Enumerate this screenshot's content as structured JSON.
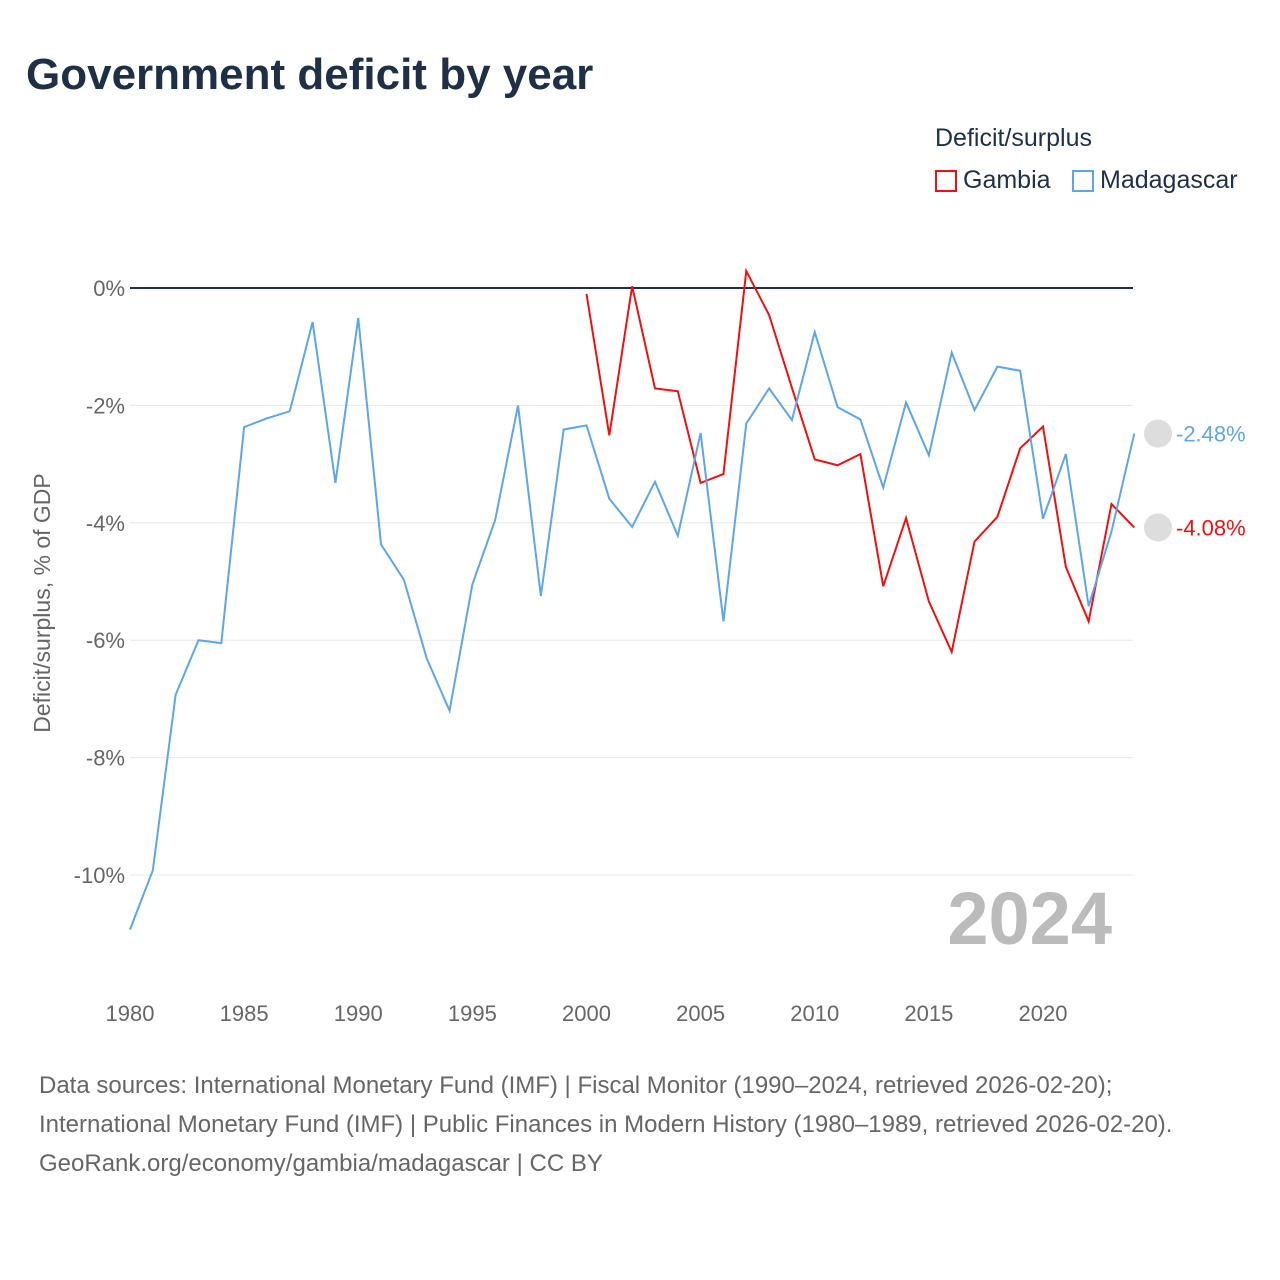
{
  "chart_data": {
    "type": "line",
    "title": "Government deficit by year",
    "ylabel": "Deficit/surplus, % of GDP",
    "xlabel": "",
    "ylim": [
      -11,
      0.3
    ],
    "xlim": [
      1980,
      2024
    ],
    "yticks": [
      0,
      -2,
      -4,
      -6,
      -8,
      -10
    ],
    "ytick_labels": [
      "0%",
      "-2%",
      "-4%",
      "-6%",
      "-8%",
      "-10%"
    ],
    "xticks": [
      1980,
      1985,
      1990,
      1995,
      2000,
      2005,
      2010,
      2015,
      2020
    ],
    "xtick_labels": [
      "1980",
      "1985",
      "1990",
      "1995",
      "2000",
      "2005",
      "2010",
      "2015",
      "2020"
    ],
    "legend_title": "Deficit/surplus",
    "legend_position": "top-right",
    "year_watermark": "2024",
    "series": [
      {
        "name": "Gambia",
        "color": "#ee1111",
        "end_label": "-4.08%",
        "x": [
          2000,
          2001,
          2002,
          2003,
          2004,
          2005,
          2006,
          2007,
          2008,
          2009,
          2010,
          2011,
          2012,
          2013,
          2014,
          2015,
          2016,
          2017,
          2018,
          2019,
          2020,
          2021,
          2022,
          2023,
          2024
        ],
        "values": [
          -0.1,
          -2.51,
          0.03,
          -1.71,
          -1.76,
          -3.32,
          -3.17,
          0.29,
          -0.46,
          -1.7,
          -2.92,
          -3.02,
          -2.83,
          -5.08,
          -3.92,
          -5.34,
          -6.2,
          -4.32,
          -3.9,
          -2.73,
          -2.36,
          -4.75,
          -5.68,
          -3.68,
          -4.08
        ]
      },
      {
        "name": "Madagascar",
        "color": "#5ea6e8",
        "end_label": "-2.48%",
        "x": [
          1980,
          1981,
          1982,
          1983,
          1984,
          1985,
          1986,
          1987,
          1988,
          1989,
          1990,
          1991,
          1992,
          1993,
          1994,
          1995,
          1996,
          1997,
          1998,
          1999,
          2000,
          2001,
          2002,
          2003,
          2004,
          2005,
          2006,
          2007,
          2008,
          2009,
          2010,
          2011,
          2012,
          2013,
          2014,
          2015,
          2016,
          2017,
          2018,
          2019,
          2020,
          2021,
          2022,
          2023,
          2024
        ],
        "values": [
          -10.93,
          -9.92,
          -6.93,
          -6.0,
          -6.05,
          -2.37,
          -2.22,
          -2.1,
          -0.58,
          -3.32,
          -0.51,
          -4.37,
          -4.97,
          -6.31,
          -7.2,
          -5.05,
          -3.95,
          -2.0,
          -5.25,
          -2.41,
          -2.34,
          -3.59,
          -4.07,
          -3.3,
          -4.22,
          -2.47,
          -5.68,
          -2.31,
          -1.71,
          -2.25,
          -0.75,
          -2.03,
          -2.24,
          -3.4,
          -1.95,
          -2.85,
          -1.1,
          -2.08,
          -1.34,
          -1.41,
          -3.93,
          -2.83,
          -5.42,
          -4.15,
          -2.48
        ]
      }
    ]
  },
  "footer": {
    "sources": "Data sources: International Monetary Fund (IMF) | Fiscal Monitor (1990–2024, retrieved 2026-02-20); International Monetary Fund (IMF) | Public Finances in Modern History (1980–1989, retrieved 2026-02-20).",
    "credit": "GeoRank.org/economy/gambia/madagascar | CC BY"
  }
}
